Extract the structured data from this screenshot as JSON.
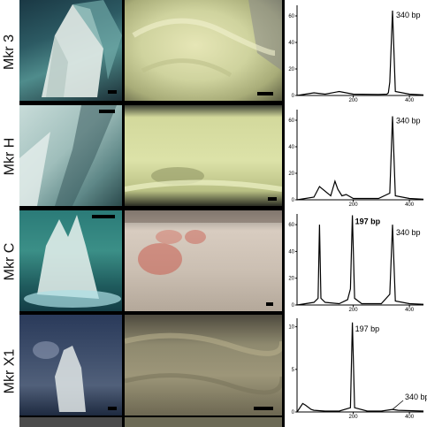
{
  "rows": [
    {
      "label": "Mkr 3",
      "peaks": [
        {
          "bp": "340 bp"
        }
      ],
      "y_ticks": [
        "60",
        "40",
        "20",
        "0"
      ],
      "x_ticks": [
        "200",
        "400"
      ]
    },
    {
      "label": "Mkr H",
      "peaks": [
        {
          "bp": "340 bp"
        }
      ],
      "y_ticks": [
        "60",
        "40",
        "20",
        "0"
      ],
      "x_ticks": [
        "200",
        "400"
      ]
    },
    {
      "label": "Mkr C",
      "peaks": [
        {
          "bp": "197 bp"
        },
        {
          "bp": "340 bp"
        }
      ],
      "y_ticks": [
        "60",
        "40",
        "20",
        "0"
      ],
      "x_ticks": [
        "200",
        "400"
      ]
    },
    {
      "label": "Mkr X1",
      "peaks": [
        {
          "bp": "197 bp"
        },
        {
          "bp": "340 bp"
        }
      ],
      "y_ticks": [
        "10",
        "5",
        "0"
      ],
      "x_ticks": [
        "200",
        "400"
      ]
    }
  ],
  "chart_data": [
    {
      "type": "line",
      "x": [
        0,
        60,
        100,
        150,
        200,
        290,
        320,
        325,
        330,
        340,
        350,
        400,
        450
      ],
      "y": [
        0,
        2,
        1,
        3,
        1,
        0.8,
        1,
        2,
        10,
        64,
        3,
        1,
        0.5
      ],
      "ylim": [
        0,
        68
      ],
      "xlim": [
        0,
        450
      ]
    },
    {
      "type": "line",
      "x": [
        0,
        60,
        80,
        120,
        135,
        145,
        160,
        175,
        200,
        290,
        330,
        340,
        350,
        400,
        450
      ],
      "y": [
        0,
        2,
        10,
        3,
        14,
        8,
        3,
        4,
        1,
        1,
        5,
        63,
        3,
        1,
        0.5
      ],
      "ylim": [
        0,
        68
      ],
      "xlim": [
        0,
        450
      ]
    },
    {
      "type": "line",
      "x": [
        0,
        60,
        75,
        80,
        85,
        100,
        150,
        180,
        190,
        197,
        205,
        230,
        300,
        330,
        340,
        350,
        400,
        450
      ],
      "y": [
        0,
        2,
        5,
        60,
        5,
        2,
        1,
        4,
        12,
        67,
        5,
        1,
        1,
        8,
        60,
        3,
        1,
        0.5
      ],
      "ylim": [
        0,
        68
      ],
      "xlim": [
        0,
        450
      ]
    },
    {
      "type": "line",
      "x": [
        0,
        20,
        30,
        50,
        60,
        100,
        150,
        190,
        197,
        205,
        250,
        300,
        340,
        360,
        450
      ],
      "y": [
        0,
        1,
        0.8,
        0.3,
        0.2,
        0.1,
        0.1,
        0.5,
        10.5,
        0.5,
        0.1,
        0.1,
        0.3,
        0.2,
        0.1
      ],
      "ylim": [
        0,
        11
      ],
      "xlim": [
        0,
        450
      ]
    }
  ]
}
